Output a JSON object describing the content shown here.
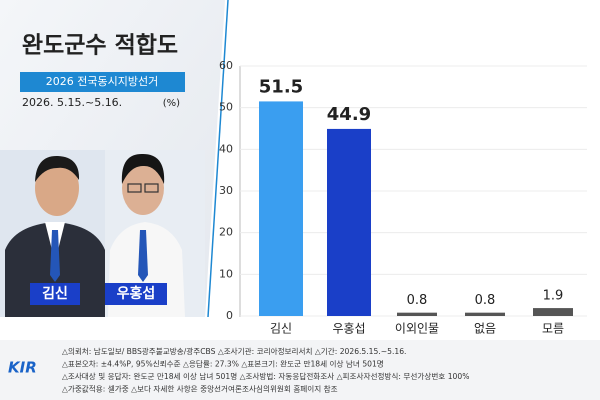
{
  "header": {
    "title": "완도군수 적합도",
    "subtitle": "2026 전국동시지방선거",
    "date": "2026. 5.15.~5.16.",
    "unit": "(%)"
  },
  "candidates": [
    "김신",
    "우홍섭"
  ],
  "logo": "KIR",
  "footer": {
    "notes": [
      "△의뢰처: 남도일보/ BBS광주불교방송/광주CBS   △조사기관: 코리아정보리서치   △기간: 2026.5.15.~5.16.",
      "△표본오차: ±4.4%P, 95%신뢰수준   △응답률: 27.3%   △표본크기: 완도군 만18세 이상 남녀 501명",
      "△조사대상 및 응답자: 완도군 만18세 이상 남녀 501명   △조사방법: 자동응답전화조사   △피조사자선정방식: 무선가상번호 100%",
      "△가중값적용: 셀가중   △보다 자세한 사항은 중앙선거여론조사심의위원회 홈페이지 참조"
    ]
  },
  "chart_data": {
    "type": "bar",
    "categories": [
      "김신",
      "우홍섭",
      "이외인물",
      "없음",
      "모름"
    ],
    "values": [
      51.5,
      44.9,
      0.8,
      0.8,
      1.9
    ],
    "colors": [
      "#3a9ef0",
      "#1a3fc8",
      "#555555",
      "#555555",
      "#555555"
    ],
    "ylim": [
      0,
      60
    ],
    "yticks": [
      0,
      10,
      20,
      30,
      40,
      50,
      60
    ],
    "grid": true
  }
}
